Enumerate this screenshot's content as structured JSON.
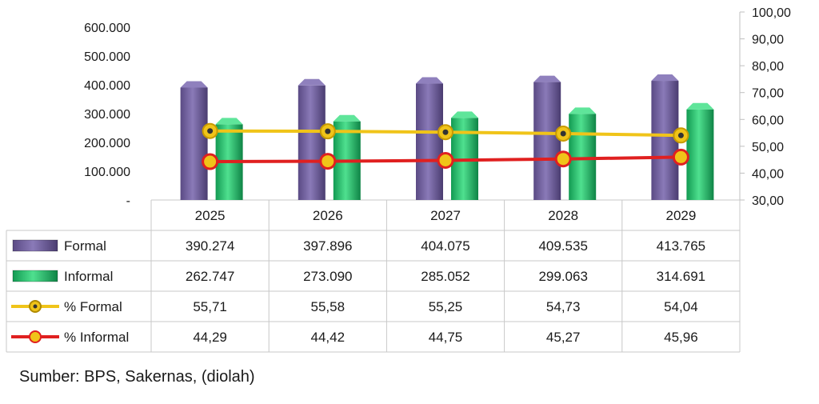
{
  "chart_data": {
    "type": "bar",
    "categories": [
      "2025",
      "2026",
      "2027",
      "2028",
      "2029"
    ],
    "left_axis": {
      "range": [
        0,
        600000
      ],
      "ticks": [
        "-",
        "100.000",
        "200.000",
        "300.000",
        "400.000",
        "500.000",
        "600.000"
      ]
    },
    "right_axis": {
      "range": [
        30,
        100
      ],
      "ticks": [
        "30,00",
        "40,00",
        "50,00",
        "60,00",
        "70,00",
        "80,00",
        "90,00",
        "100,00"
      ]
    },
    "series": [
      {
        "name": "Formal",
        "kind": "bar",
        "axis": "left",
        "values": [
          390274,
          397896,
          404075,
          409535,
          413765
        ],
        "labels": [
          "390.274",
          "397.896",
          "404.075",
          "409.535",
          "413.765"
        ],
        "color": "#6b5b95"
      },
      {
        "name": "Informal",
        "kind": "bar",
        "axis": "left",
        "values": [
          262747,
          273090,
          285052,
          299063,
          314691
        ],
        "labels": [
          "262.747",
          "273.090",
          "285.052",
          "299.063",
          "314.691"
        ],
        "color": "#1fbf6a"
      },
      {
        "name": "% Formal",
        "kind": "line",
        "axis": "right",
        "values": [
          55.71,
          55.58,
          55.25,
          54.73,
          54.04
        ],
        "labels": [
          "55,71",
          "55,58",
          "55,25",
          "54,73",
          "54,04"
        ],
        "color": "#f0c419"
      },
      {
        "name": "% Informal",
        "kind": "line",
        "axis": "right",
        "values": [
          44.29,
          44.42,
          44.75,
          45.27,
          45.96
        ],
        "labels": [
          "44,29",
          "44,42",
          "44,75",
          "45,27",
          "45,96"
        ],
        "color": "#e02020"
      }
    ],
    "grid": false,
    "legend": "data-table-left"
  },
  "source": "Sumber: BPS, Sakernas, (diolah)"
}
